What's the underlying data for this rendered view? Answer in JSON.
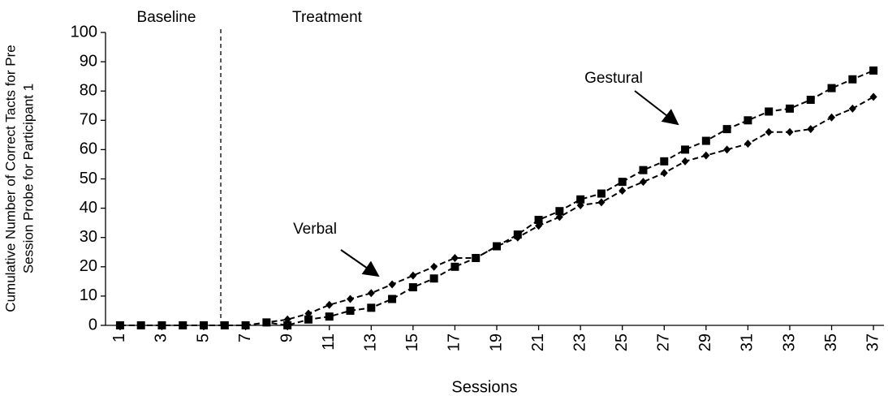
{
  "chart_data": {
    "type": "line",
    "ylabel": [
      "Cumulative Number of Correct Tacts for Pre",
      "Session Probe for Participant 1"
    ],
    "xlabel": "Sessions",
    "annotations": [
      "Baseline",
      "Treatment"
    ],
    "x": [
      1,
      2,
      3,
      4,
      5,
      6,
      7,
      8,
      9,
      10,
      11,
      12,
      13,
      14,
      15,
      16,
      17,
      18,
      19,
      20,
      21,
      22,
      23,
      24,
      25,
      26,
      27,
      28,
      29,
      30,
      31,
      32,
      33,
      34,
      35,
      36,
      37
    ],
    "xlim": [
      0.5,
      37.5
    ],
    "xticks": [
      1,
      3,
      5,
      7,
      9,
      11,
      13,
      15,
      17,
      19,
      21,
      23,
      25,
      27,
      29,
      31,
      33,
      35,
      37
    ],
    "ylim": [
      0,
      100
    ],
    "yticks": [
      0,
      10,
      20,
      30,
      40,
      50,
      60,
      70,
      80,
      90,
      100
    ],
    "series": [
      {
        "name": "Verbal",
        "color": "#000000",
        "marker": "diamond",
        "values": [
          0,
          0,
          0,
          0,
          0,
          0,
          0,
          1,
          2,
          4,
          7,
          9,
          11,
          14,
          17,
          20,
          23,
          23,
          27,
          30,
          34,
          37,
          41,
          42,
          46,
          49,
          52,
          56,
          58,
          60,
          62,
          66,
          66,
          67,
          71,
          74,
          78
        ]
      },
      {
        "name": "Gestural",
        "color": "#000000",
        "marker": "square",
        "values": [
          0,
          0,
          0,
          0,
          0,
          0,
          0,
          1,
          0,
          2,
          3,
          5,
          6,
          9,
          13,
          16,
          20,
          23,
          27,
          31,
          36,
          39,
          43,
          45,
          49,
          53,
          56,
          60,
          63,
          67,
          70,
          73,
          74,
          77,
          81,
          84,
          87
        ]
      }
    ]
  }
}
